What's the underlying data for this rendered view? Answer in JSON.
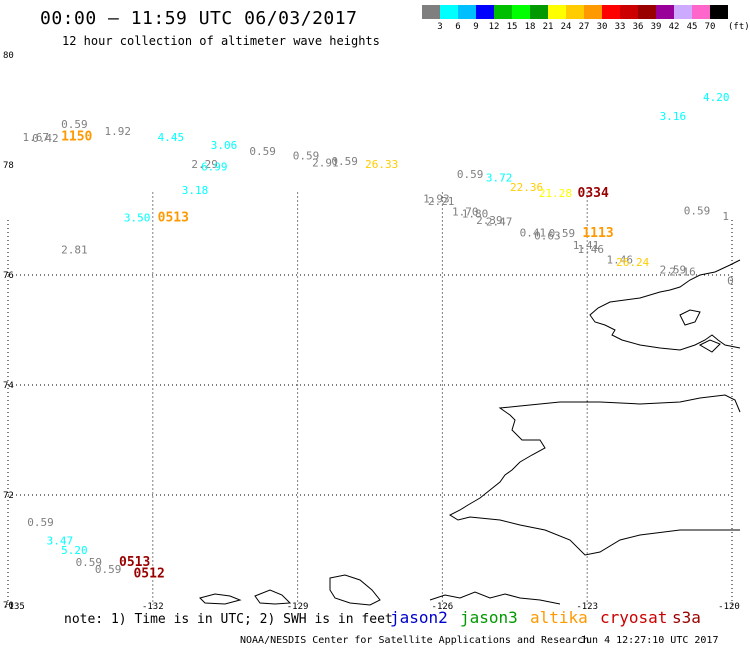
{
  "header": {
    "title": "00:00 – 11:59 UTC 06/03/2017",
    "subtitle": "12 hour collection of altimeter wave heights"
  },
  "colorbar": {
    "colors": [
      "#7f7f7f",
      "#00ffff",
      "#00bfff",
      "#0000ff",
      "#00bf00",
      "#00ff00",
      "#009900",
      "#ffff00",
      "#ffcc00",
      "#ff9900",
      "#ff0000",
      "#cc0000",
      "#990000",
      "#990099",
      "#ccaaff",
      "#ff66cc",
      "#000000"
    ],
    "labels": [
      "3",
      "6",
      "9",
      "12",
      "15",
      "18",
      "21",
      "24",
      "27",
      "30",
      "33",
      "36",
      "39",
      "42",
      "45",
      "70"
    ],
    "unit": "(ft)"
  },
  "axes": {
    "lat_labels": [
      "80",
      "78",
      "76",
      "74",
      "72",
      "70"
    ],
    "lon_labels": [
      "-135",
      "-132",
      "-129",
      "-126",
      "-123",
      "-120"
    ]
  },
  "observations": [
    {
      "text": "0.59",
      "lon": -133.9,
      "lat": 78.67,
      "color": "#7f7f7f"
    },
    {
      "text": "1.92",
      "lon": -133.0,
      "lat": 78.55,
      "color": "#7f7f7f"
    },
    {
      "text": "1.67",
      "lon": -134.7,
      "lat": 78.44,
      "color": "#7f7f7f"
    },
    {
      "text": "0.42",
      "lon": -134.5,
      "lat": 78.42,
      "color": "#7f7f7f"
    },
    {
      "text": "1150",
      "lon": -133.9,
      "lat": 78.45,
      "color": "#ff9900",
      "bold": true
    },
    {
      "text": "4.45",
      "lon": -131.9,
      "lat": 78.44,
      "color": "#00ffff"
    },
    {
      "text": "3.06",
      "lon": -130.8,
      "lat": 78.29,
      "color": "#00ffff"
    },
    {
      "text": "0.59",
      "lon": -130.0,
      "lat": 78.18,
      "color": "#7f7f7f"
    },
    {
      "text": "0.59",
      "lon": -129.1,
      "lat": 78.1,
      "color": "#7f7f7f"
    },
    {
      "text": "2.91",
      "lon": -128.7,
      "lat": 77.97,
      "color": "#7f7f7f"
    },
    {
      "text": "0.59",
      "lon": -128.3,
      "lat": 78.0,
      "color": "#7f7f7f"
    },
    {
      "text": "26.33",
      "lon": -127.6,
      "lat": 77.95,
      "color": "#ffcc00"
    },
    {
      "text": "2.29",
      "lon": -131.2,
      "lat": 77.95,
      "color": "#7f7f7f"
    },
    {
      "text": "6.99",
      "lon": -131.0,
      "lat": 77.9,
      "color": "#00ffff"
    },
    {
      "text": "3.18",
      "lon": -131.4,
      "lat": 77.47,
      "color": "#00ffff"
    },
    {
      "text": "0.59",
      "lon": -125.7,
      "lat": 77.76,
      "color": "#7f7f7f"
    },
    {
      "text": "3.72",
      "lon": -125.1,
      "lat": 77.7,
      "color": "#00ffff"
    },
    {
      "text": "22.36",
      "lon": -124.6,
      "lat": 77.53,
      "color": "#ffcc00"
    },
    {
      "text": "21.28",
      "lon": -124.0,
      "lat": 77.42,
      "color": "#ffff00"
    },
    {
      "text": "0334",
      "lon": -123.2,
      "lat": 77.42,
      "color": "#990000",
      "bold": true
    },
    {
      "text": "1.93",
      "lon": -126.4,
      "lat": 77.32,
      "color": "#7f7f7f"
    },
    {
      "text": "2.21",
      "lon": -126.3,
      "lat": 77.27,
      "color": "#7f7f7f"
    },
    {
      "text": "1.70",
      "lon": -125.8,
      "lat": 77.08,
      "color": "#7f7f7f"
    },
    {
      "text": "1.80",
      "lon": -125.6,
      "lat": 77.05,
      "color": "#7f7f7f"
    },
    {
      "text": "2.39",
      "lon": -125.3,
      "lat": 76.93,
      "color": "#7f7f7f"
    },
    {
      "text": "2.47",
      "lon": -125.1,
      "lat": 76.9,
      "color": "#7f7f7f"
    },
    {
      "text": "0.59",
      "lon": -121.0,
      "lat": 77.1,
      "color": "#7f7f7f"
    },
    {
      "text": "1",
      "lon": -120.2,
      "lat": 77.0,
      "color": "#7f7f7f"
    },
    {
      "text": "0.41",
      "lon": -124.4,
      "lat": 76.7,
      "color": "#7f7f7f"
    },
    {
      "text": "0.63",
      "lon": -124.1,
      "lat": 76.65,
      "color": "#7f7f7f"
    },
    {
      "text": "0.59",
      "lon": -123.8,
      "lat": 76.69,
      "color": "#7f7f7f"
    },
    {
      "text": "1113",
      "lon": -123.1,
      "lat": 76.69,
      "color": "#ff9900",
      "bold": true
    },
    {
      "text": "1.41",
      "lon": -123.3,
      "lat": 76.47,
      "color": "#7f7f7f"
    },
    {
      "text": "1.46",
      "lon": -123.2,
      "lat": 76.4,
      "color": "#7f7f7f"
    },
    {
      "text": "1.46",
      "lon": -122.6,
      "lat": 76.21,
      "color": "#7f7f7f"
    },
    {
      "text": "26.24",
      "lon": -122.4,
      "lat": 76.16,
      "color": "#ffcc00"
    },
    {
      "text": "2.59",
      "lon": -121.5,
      "lat": 76.03,
      "color": "#7f7f7f"
    },
    {
      "text": "2.16",
      "lon": -121.3,
      "lat": 75.99,
      "color": "#7f7f7f"
    },
    {
      "text": "0",
      "lon": -120.1,
      "lat": 75.83,
      "color": "#7f7f7f"
    },
    {
      "text": "3.50",
      "lon": -132.6,
      "lat": 76.97,
      "color": "#00ffff"
    },
    {
      "text": "0513",
      "lon": -131.9,
      "lat": 76.97,
      "color": "#ff9900",
      "bold": true
    },
    {
      "text": "2.81",
      "lon": -133.9,
      "lat": 76.39,
      "color": "#7f7f7f"
    },
    {
      "text": "4.20",
      "lon": -120.6,
      "lat": 79.16,
      "color": "#00ffff"
    },
    {
      "text": "3.16",
      "lon": -121.5,
      "lat": 78.82,
      "color": "#00ffff"
    },
    {
      "text": "0.59",
      "lon": -134.6,
      "lat": 71.44,
      "color": "#7f7f7f"
    },
    {
      "text": "3.47",
      "lon": -134.2,
      "lat": 71.1,
      "color": "#00ffff"
    },
    {
      "text": "5.20",
      "lon": -133.9,
      "lat": 70.93,
      "color": "#00ffff"
    },
    {
      "text": "0.59",
      "lon": -133.6,
      "lat": 70.71,
      "color": "#7f7f7f"
    },
    {
      "text": "0.59",
      "lon": -133.2,
      "lat": 70.58,
      "color": "#7f7f7f"
    },
    {
      "text": "0513",
      "lon": -132.7,
      "lat": 70.71,
      "color": "#990000",
      "bold": true
    },
    {
      "text": "0512",
      "lon": -132.4,
      "lat": 70.5,
      "color": "#990000",
      "bold": true
    }
  ],
  "footer": {
    "note": "note:  1) Time is in UTC;  2) SWH is in feet",
    "satellites": [
      {
        "name": "jason2",
        "color": "#0000cc"
      },
      {
        "name": "jason3",
        "color": "#009900"
      },
      {
        "name": "altika",
        "color": "#ff9900"
      },
      {
        "name": "cryosat",
        "color": "#cc0000"
      },
      {
        "name": "s3a",
        "color": "#990000"
      }
    ],
    "credit": "NOAA/NESDIS Center for Satellite Applications and Research",
    "timestamp": "Jun  4 12:27:10 UTC 2017"
  }
}
